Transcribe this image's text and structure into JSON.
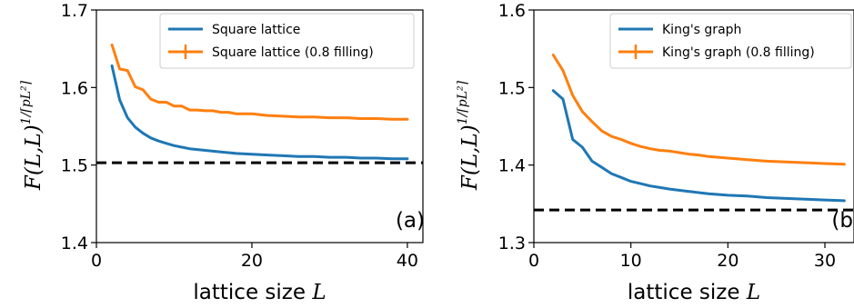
{
  "colors": {
    "series_main": "#1f77b4",
    "series_filled": "#ff7f0e",
    "reference_line": "#000000"
  },
  "chart_data": [
    {
      "type": "line",
      "panel_label": "(a)",
      "xlabel_text": "lattice size ",
      "xlabel_var": "L",
      "ylabel_main": "F(L,L)",
      "ylabel_exp": "1/⌈pL²⌉",
      "xlim": [
        0,
        42
      ],
      "ylim": [
        1.4,
        1.7
      ],
      "xticks": [
        0,
        20,
        40
      ],
      "yticks": [
        1.4,
        1.5,
        1.6,
        1.7
      ],
      "xtick_labels": [
        "0",
        "20",
        "40"
      ],
      "ytick_labels": [
        "1.4",
        "1.5",
        "1.6",
        "1.7"
      ],
      "reference_y": 1.503,
      "legend_position": "top-right",
      "series": [
        {
          "name": "Square lattice",
          "color": "#1f77b4",
          "x": [
            2,
            3,
            4,
            5,
            6,
            7,
            8,
            9,
            10,
            11,
            12,
            14,
            16,
            18,
            20,
            22,
            24,
            26,
            28,
            30,
            32,
            34,
            36,
            38,
            40
          ],
          "y": [
            1.628,
            1.584,
            1.561,
            1.549,
            1.541,
            1.535,
            1.531,
            1.528,
            1.525,
            1.523,
            1.521,
            1.519,
            1.517,
            1.515,
            1.514,
            1.513,
            1.512,
            1.511,
            1.511,
            1.51,
            1.51,
            1.509,
            1.509,
            1.508,
            1.508
          ]
        },
        {
          "name": "Square lattice (0.8 filling)",
          "color": "#ff7f0e",
          "x": [
            2,
            3,
            4,
            5,
            6,
            7,
            8,
            9,
            10,
            11,
            12,
            13,
            14,
            15,
            16,
            17,
            18,
            20,
            22,
            24,
            26,
            28,
            30,
            32,
            34,
            36,
            38,
            40
          ],
          "y": [
            1.655,
            1.624,
            1.622,
            1.601,
            1.597,
            1.585,
            1.581,
            1.581,
            1.576,
            1.576,
            1.571,
            1.571,
            1.57,
            1.57,
            1.568,
            1.568,
            1.566,
            1.566,
            1.564,
            1.563,
            1.562,
            1.562,
            1.561,
            1.561,
            1.56,
            1.56,
            1.559,
            1.559
          ]
        }
      ]
    },
    {
      "type": "line",
      "panel_label": "(b",
      "xlabel_text": "lattice size ",
      "xlabel_var": "L",
      "ylabel_main": "F(L,L)",
      "ylabel_exp": "1/⌈pL²⌉",
      "xlim": [
        0,
        33
      ],
      "ylim": [
        1.3,
        1.6
      ],
      "xticks": [
        0,
        10,
        20,
        30
      ],
      "yticks": [
        1.3,
        1.4,
        1.5,
        1.6
      ],
      "xtick_labels": [
        "0",
        "10",
        "20",
        "30"
      ],
      "ytick_labels": [
        "1.3",
        "1.4",
        "1.5",
        "1.6"
      ],
      "reference_y": 1.342,
      "legend_position": "top-right",
      "series": [
        {
          "name": "King's graph",
          "color": "#1f77b4",
          "x": [
            2,
            3,
            4,
            5,
            6,
            7,
            8,
            9,
            10,
            11,
            12,
            13,
            14,
            16,
            18,
            20,
            22,
            24,
            26,
            28,
            30,
            32
          ],
          "y": [
            1.496,
            1.485,
            1.433,
            1.423,
            1.405,
            1.397,
            1.389,
            1.384,
            1.379,
            1.376,
            1.373,
            1.371,
            1.369,
            1.366,
            1.363,
            1.361,
            1.36,
            1.358,
            1.357,
            1.356,
            1.355,
            1.354
          ]
        },
        {
          "name": "King's graph (0.8 filling)",
          "color": "#ff7f0e",
          "x": [
            2,
            3,
            4,
            5,
            6,
            7,
            8,
            9,
            10,
            11,
            12,
            13,
            14,
            15,
            16,
            17,
            18,
            20,
            22,
            24,
            26,
            28,
            30,
            32
          ],
          "y": [
            1.542,
            1.522,
            1.49,
            1.469,
            1.456,
            1.444,
            1.437,
            1.433,
            1.428,
            1.424,
            1.421,
            1.419,
            1.418,
            1.416,
            1.414,
            1.413,
            1.411,
            1.409,
            1.407,
            1.405,
            1.404,
            1.403,
            1.402,
            1.401
          ]
        }
      ]
    }
  ]
}
